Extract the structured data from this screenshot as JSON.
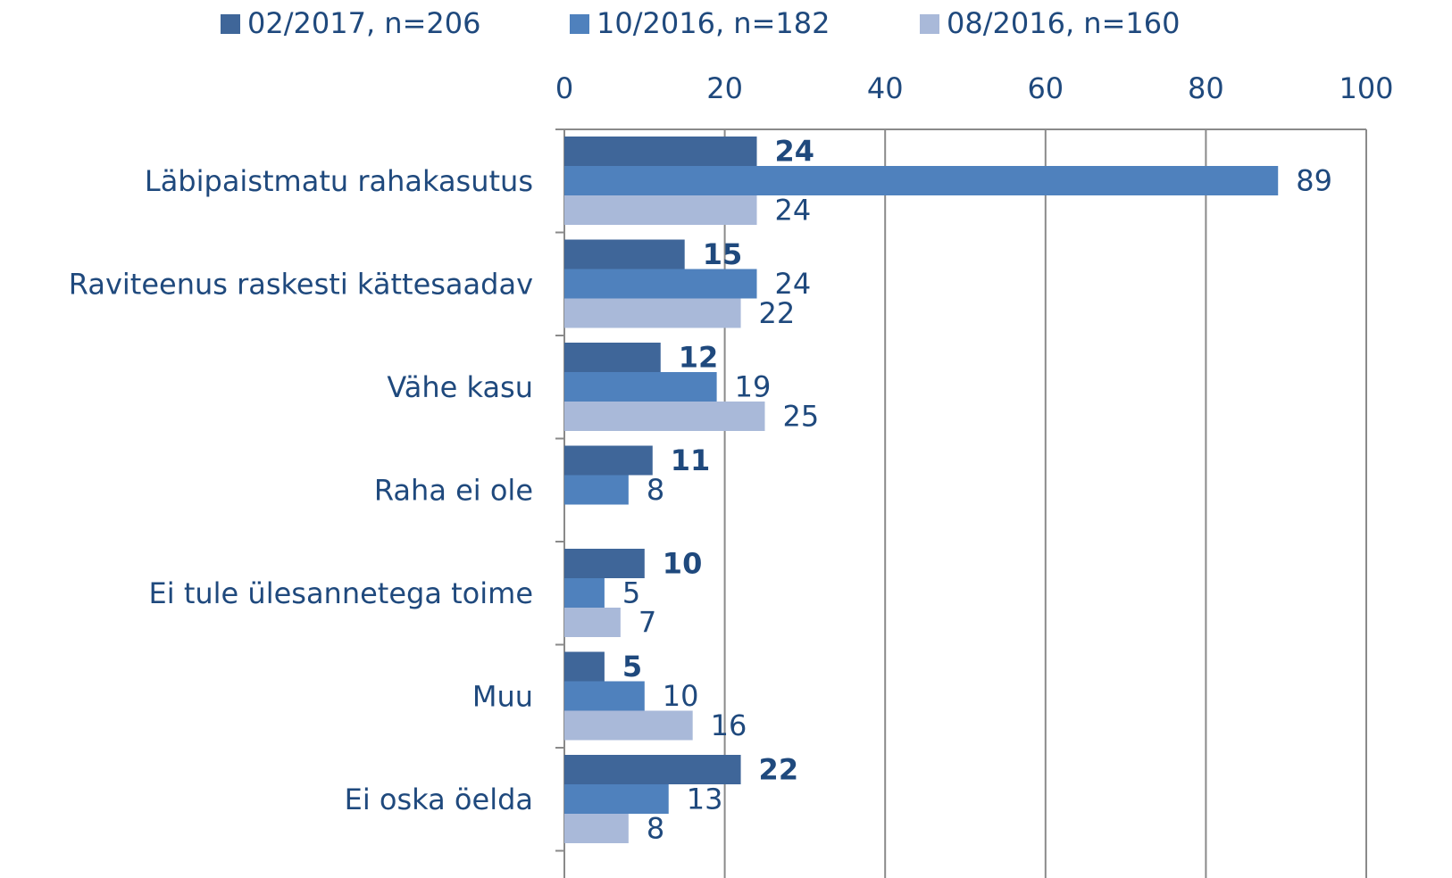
{
  "chart_data": {
    "type": "bar",
    "orientation": "horizontal",
    "categories": [
      "Läbipaistmatu rahakasutus",
      "Raviteenus raskesti kättesaadav",
      "Vähe kasu",
      "Raha ei ole",
      "Ei tule ülesannetega toime",
      "Muu",
      "Ei oska öelda"
    ],
    "series": [
      {
        "name": "02/2017, n=206",
        "color": "#3f6699",
        "values": [
          24,
          15,
          12,
          11,
          10,
          5,
          22
        ]
      },
      {
        "name": "10/2016, n=182",
        "color": "#4f81bd",
        "values": [
          89,
          24,
          19,
          8,
          5,
          10,
          13
        ]
      },
      {
        "name": "08/2016, n=160",
        "color": "#a9b9d9",
        "values": [
          24,
          22,
          25,
          null,
          7,
          16,
          8
        ]
      }
    ],
    "xlim": [
      0,
      100
    ],
    "xticks": [
      0,
      20,
      40,
      60,
      80,
      100
    ],
    "grid": true,
    "legend": "top"
  }
}
